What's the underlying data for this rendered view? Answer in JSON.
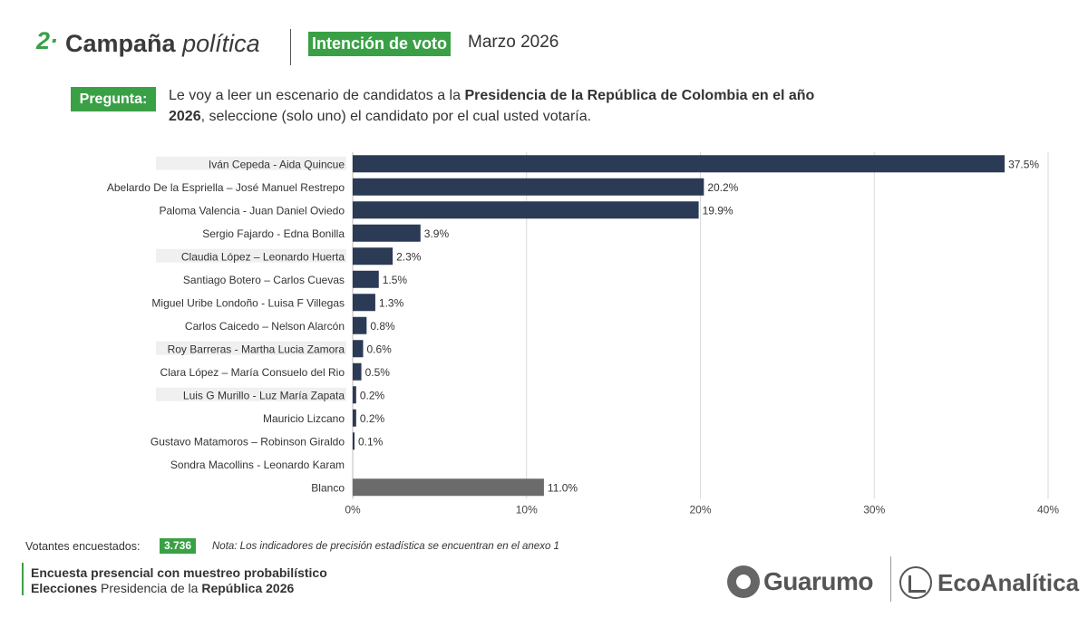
{
  "header": {
    "number": "2·",
    "title_bold": "Campaña",
    "title_italic": "política",
    "badge": "Intención de voto",
    "date": "Marzo  2026"
  },
  "question": {
    "tag": "Pregunta:",
    "text_a": "Le voy a leer un escenario de candidatos a la ",
    "text_b": "Presidencia de la República de Colombia en el año 2026",
    "text_c": ", seleccione (solo uno) el candidato por el cual usted votaría."
  },
  "colors": {
    "accent": "#3aa046",
    "bar": "#2b3a55",
    "blank_bar": "#6b6b6b",
    "grid": "#d9d9d9",
    "label_highlight": "#f0f0f0"
  },
  "chart_data": {
    "type": "bar",
    "orientation": "horizontal",
    "categories": [
      "Iván Cepeda - Aida Quincue",
      "Abelardo De la Espriella – José Manuel Restrepo",
      "Paloma Valencia - Juan Daniel Oviedo",
      "Sergio Fajardo - Edna Bonilla",
      "Claudia López – Leonardo Huerta",
      "Santiago Botero – Carlos Cuevas",
      "Miguel Uribe Londoño - Luisa F Villegas",
      "Carlos Caicedo – Nelson Alarcón",
      "Roy Barreras - Martha Lucia Zamora",
      "Clara López – María Consuelo del Rio",
      "Luis G Murillo - Luz María Zapata",
      "Mauricio Lizcano",
      "Gustavo Matamoros – Robinson Giraldo",
      "Sondra Macollins - Leonardo Karam",
      "Blanco"
    ],
    "values": [
      37.5,
      20.2,
      19.9,
      3.9,
      2.3,
      1.5,
      1.3,
      0.8,
      0.6,
      0.5,
      0.2,
      0.2,
      0.1,
      null,
      11.0
    ],
    "value_labels": [
      "37.5%",
      "20.2%",
      "19.9%",
      "3.9%",
      "2.3%",
      "1.5%",
      "1.3%",
      "0.8%",
      "0.6%",
      "0.5%",
      "0.2%",
      "0.2%",
      "0.1%",
      "",
      "11.0%"
    ],
    "highlighted_labels": [
      0,
      4,
      8,
      10
    ],
    "xlim": [
      0,
      40
    ],
    "xticks": [
      0,
      10,
      20,
      30,
      40
    ],
    "xtick_labels": [
      "0%",
      "10%",
      "20%",
      "30%",
      "40%"
    ],
    "grid": true,
    "title": "",
    "xlabel": "",
    "ylabel": ""
  },
  "footer": {
    "sample_label": "Votantes encuestados:",
    "sample_value": "3.736",
    "note": "Nota: Los indicadores de precisión estadística se encuentran en el anexo 1",
    "line1": "Encuesta presencial con muestreo probabilístico",
    "line2_a": "Elecciones",
    "line2_b": " Presidencia de la ",
    "line2_c": "República 2026"
  },
  "logos": {
    "guarumo": "Guarumo",
    "ecoanalitica": "EcoAnalítica",
    "guarumo_icon": "guarumo-logo-icon",
    "ecoanalitica_icon": "ecoanalitica-logo-icon"
  }
}
